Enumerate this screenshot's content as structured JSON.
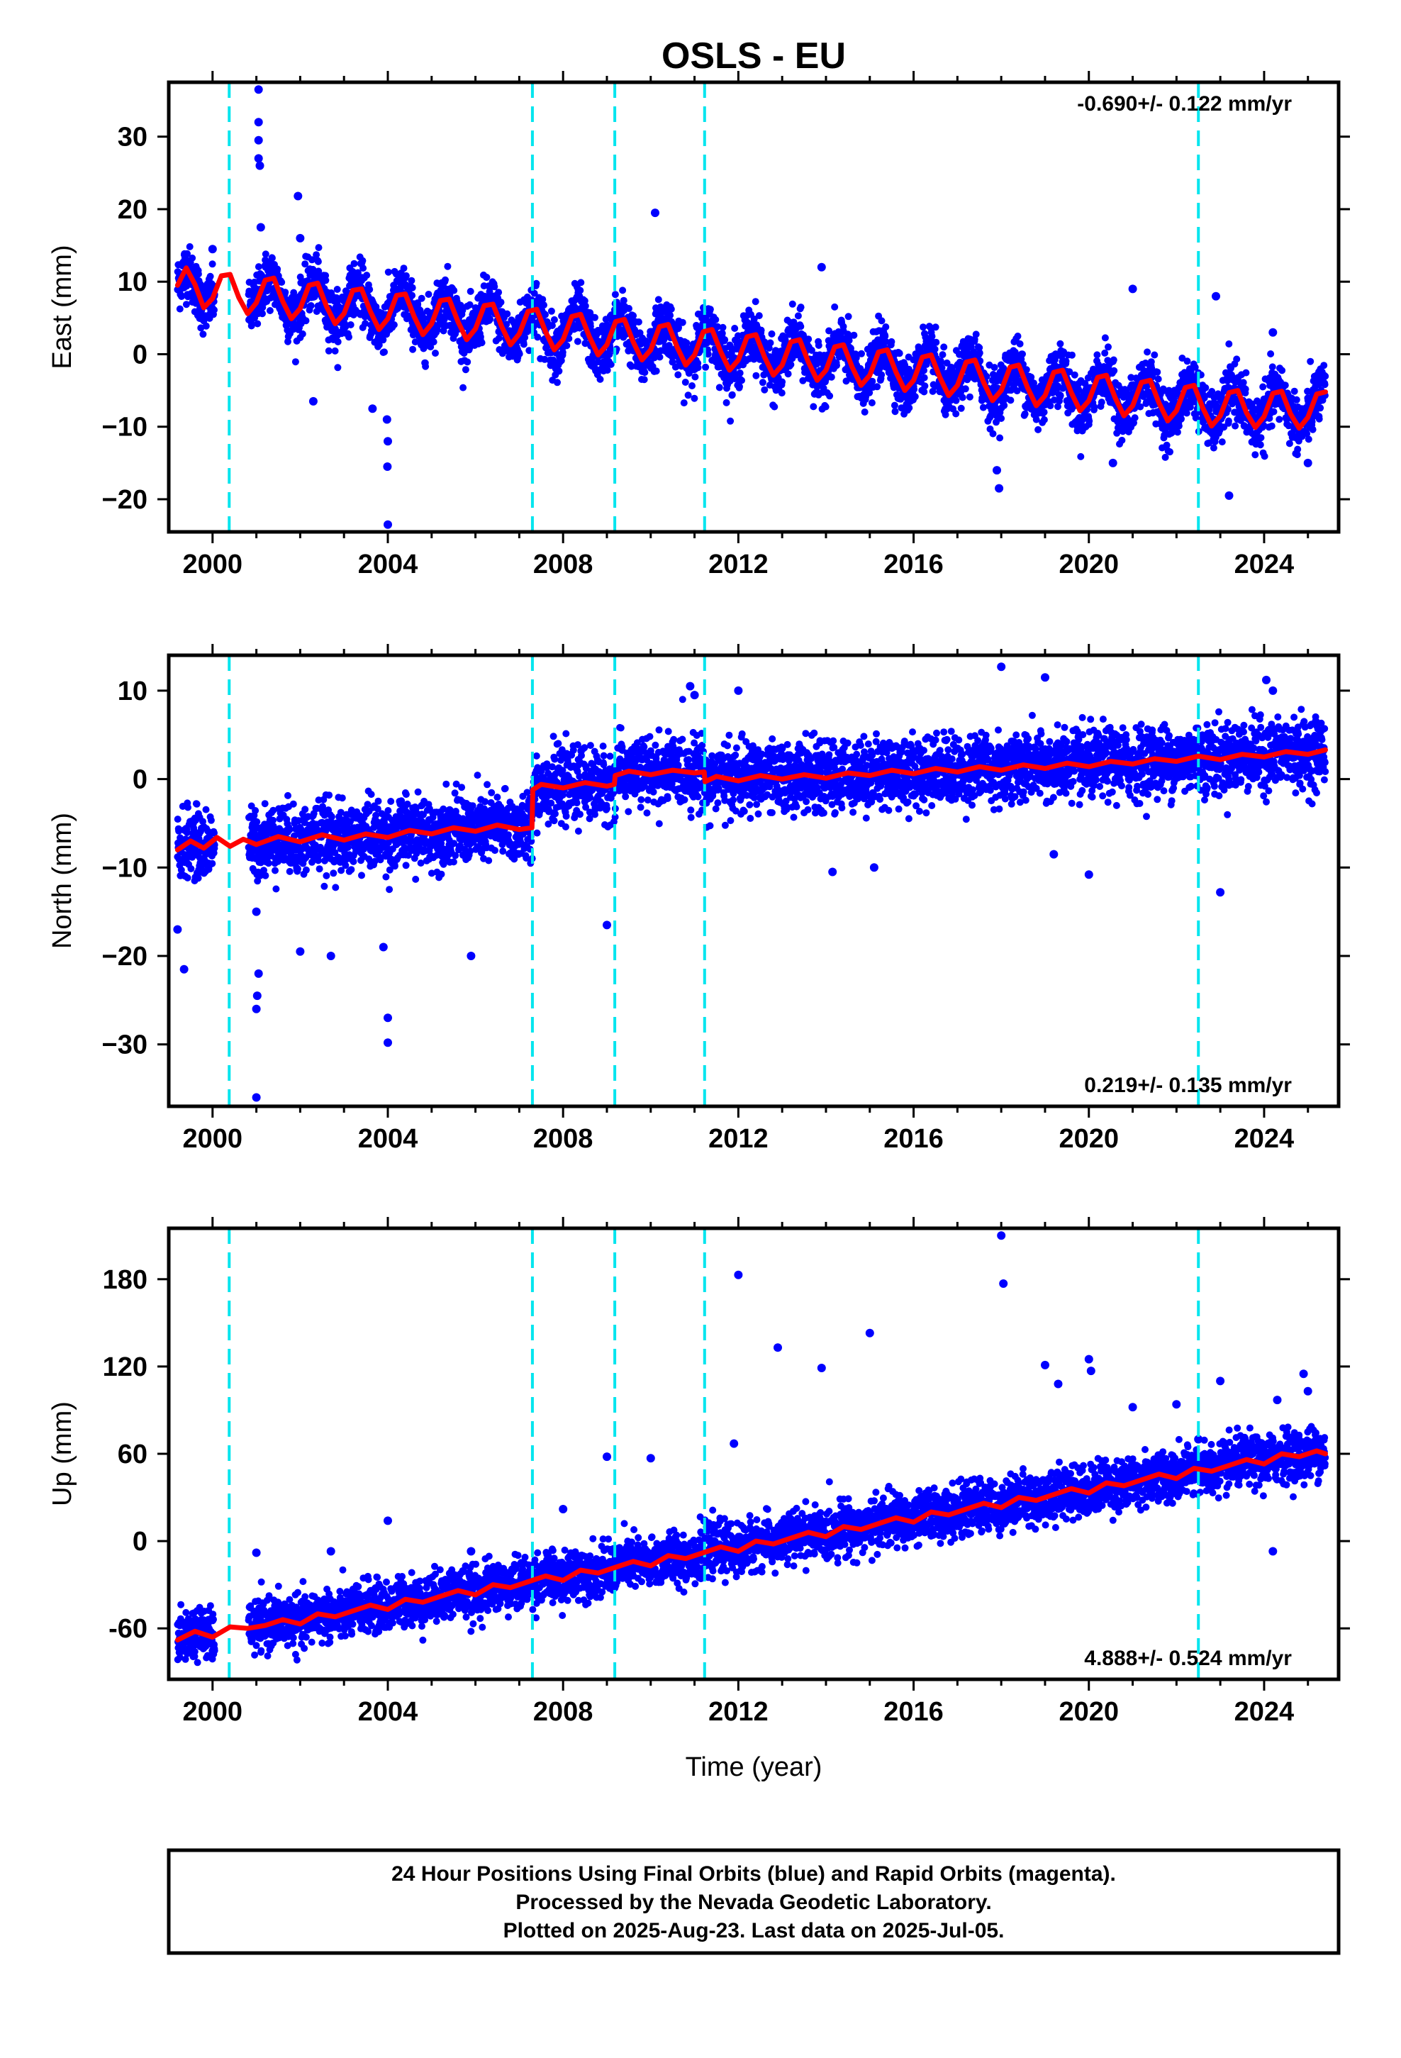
{
  "title": "OSLS - EU",
  "footer": {
    "lines": [
      "24 Hour Positions Using Final Orbits (blue) and Rapid Orbits (magenta).",
      "Processed by the Nevada Geodetic Laboratory.",
      "Plotted on 2025-Aug-23. Last data on 2025-Jul-05."
    ]
  },
  "chart_data": [
    {
      "type": "scatter",
      "panel": "east",
      "title": "OSLS - EU",
      "ylabel": "East (mm)",
      "xlabel": "",
      "rate_label": "-0.690+/- 0.122 mm/yr",
      "rate_position": "top-right",
      "xlim": [
        1999.0,
        2025.7
      ],
      "ylim": [
        -24.5,
        37.5
      ],
      "xticks": [
        2000,
        2004,
        2008,
        2012,
        2016,
        2020,
        2024
      ],
      "yticks": [
        -20,
        -10,
        0,
        10,
        20,
        30
      ],
      "ytick_labels": [
        "−20",
        "−10",
        "0",
        "10",
        "20",
        "30"
      ],
      "grid": false,
      "colors": {
        "points": "#0000ff",
        "model": "#ff0000",
        "events": "#00e5ee"
      },
      "event_lines": [
        2000.38,
        2007.3,
        2009.18,
        2011.23,
        2022.5
      ],
      "model": {
        "x": [
          1999.2,
          1999.4,
          1999.6,
          1999.8,
          2000.0,
          2000.2,
          2000.4,
          2000.6,
          2000.8,
          2001.0,
          2001.2,
          2001.4,
          2001.6,
          2001.8,
          2002.0,
          2002.2,
          2002.4,
          2002.6,
          2002.8,
          2003.0,
          2003.2,
          2003.4,
          2003.6,
          2003.8,
          2004.0,
          2004.2,
          2004.4,
          2004.6,
          2004.8,
          2005.0,
          2005.2,
          2005.4,
          2005.6,
          2005.8,
          2006.0,
          2006.2,
          2006.4,
          2006.6,
          2006.8,
          2007.0,
          2007.2,
          2007.4,
          2007.6,
          2007.8,
          2008.0,
          2008.2,
          2008.4,
          2008.6,
          2008.8,
          2009.0,
          2009.2,
          2009.4,
          2009.6,
          2009.8,
          2010.0,
          2010.2,
          2010.4,
          2010.6,
          2010.8,
          2011.0,
          2011.2,
          2011.4,
          2011.6,
          2011.8,
          2012.0,
          2012.2,
          2012.4,
          2012.6,
          2012.8,
          2013.0,
          2013.2,
          2013.4,
          2013.6,
          2013.8,
          2014.0,
          2014.2,
          2014.4,
          2014.6,
          2014.8,
          2015.0,
          2015.2,
          2015.4,
          2015.6,
          2015.8,
          2016.0,
          2016.2,
          2016.4,
          2016.6,
          2016.8,
          2017.0,
          2017.2,
          2017.4,
          2017.6,
          2017.8,
          2018.0,
          2018.2,
          2018.4,
          2018.6,
          2018.8,
          2019.0,
          2019.2,
          2019.4,
          2019.6,
          2019.8,
          2020.0,
          2020.2,
          2020.4,
          2020.6,
          2020.8,
          2021.0,
          2021.2,
          2021.4,
          2021.6,
          2021.8,
          2022.0,
          2022.2,
          2022.4,
          2022.6,
          2022.8,
          2023.0,
          2023.2,
          2023.4,
          2023.6,
          2023.8,
          2024.0,
          2024.2,
          2024.4,
          2024.6,
          2024.8,
          2025.0,
          2025.2,
          2025.4
        ],
        "y": [
          9.5,
          11.9,
          9.6,
          6.4,
          7.7,
          10.8,
          11.0,
          7.8,
          5.6,
          7.1,
          10.2,
          10.5,
          7.3,
          4.9,
          6.3,
          9.5,
          9.8,
          6.6,
          4.2,
          5.6,
          8.8,
          9.0,
          5.9,
          3.4,
          4.9,
          8.1,
          8.3,
          5.2,
          2.7,
          4.2,
          7.4,
          7.6,
          4.5,
          2.0,
          3.5,
          6.7,
          6.9,
          3.8,
          1.3,
          2.8,
          5.9,
          6.2,
          3.1,
          0.6,
          2.0,
          5.2,
          5.5,
          2.4,
          -0.1,
          1.3,
          4.5,
          4.8,
          1.7,
          -0.8,
          0.6,
          3.8,
          4.1,
          1.0,
          -1.5,
          -0.1,
          3.1,
          3.4,
          0.3,
          -2.2,
          -0.8,
          2.4,
          2.7,
          -0.4,
          -2.9,
          -1.5,
          1.7,
          2.0,
          -1.1,
          -3.6,
          -2.2,
          1.0,
          1.3,
          -1.8,
          -4.3,
          -2.9,
          0.3,
          0.6,
          -2.5,
          -5.0,
          -3.6,
          -0.4,
          -0.1,
          -3.2,
          -5.7,
          -4.3,
          -1.1,
          -0.8,
          -3.9,
          -6.4,
          -5.0,
          -1.8,
          -1.5,
          -4.6,
          -7.1,
          -5.7,
          -2.5,
          -2.2,
          -5.3,
          -7.8,
          -6.4,
          -3.2,
          -2.9,
          -6.0,
          -8.5,
          -7.1,
          -3.9,
          -3.6,
          -6.7,
          -9.2,
          -7.8,
          -4.6,
          -4.3,
          -7.4,
          -9.9,
          -8.5,
          -5.3,
          -5.0,
          -8.1,
          -10.1,
          -8.6,
          -5.4,
          -5.1,
          -8.2,
          -10.2,
          -8.7,
          -5.5,
          -5.2
        ]
      },
      "outliers": {
        "x": [
          2001.05,
          2001.05,
          2001.05,
          2001.05,
          2001.08,
          2001.1,
          2001.95,
          2003.65,
          2003.98,
          2004.0,
          2003.99,
          2004.0,
          2010.1,
          2013.9,
          2017.9,
          2017.95,
          2020.55,
          2021.0,
          2022.9,
          2023.2,
          2024.2,
          2025.0,
          2000.0,
          2002.3,
          2002.0
        ],
        "y": [
          36.5,
          32.0,
          29.5,
          27.0,
          26.0,
          17.5,
          21.8,
          -7.5,
          -9.0,
          -12.0,
          -15.5,
          -23.5,
          19.5,
          12.0,
          -16.0,
          -18.5,
          -15.0,
          9.0,
          8.0,
          -19.5,
          3.0,
          -15.0,
          14.5,
          -6.5,
          16.0
        ]
      }
    },
    {
      "type": "scatter",
      "panel": "north",
      "ylabel": "North (mm)",
      "xlabel": "",
      "rate_label": "0.219+/- 0.135 mm/yr",
      "rate_position": "bottom-right",
      "xlim": [
        1999.0,
        2025.7
      ],
      "ylim": [
        -37.0,
        14.0
      ],
      "xticks": [
        2000,
        2004,
        2008,
        2012,
        2016,
        2020,
        2024
      ],
      "yticks": [
        -30,
        -20,
        -10,
        0,
        10
      ],
      "ytick_labels": [
        "−30",
        "−20",
        "−10",
        "0",
        "10"
      ],
      "grid": false,
      "colors": {
        "points": "#0000ff",
        "model": "#ff0000",
        "events": "#00e5ee"
      },
      "event_lines": [
        2000.38,
        2007.3,
        2009.18,
        2011.23,
        2022.5
      ],
      "model": {
        "x": [
          1999.2,
          1999.5,
          1999.8,
          2000.1,
          2000.4,
          2000.7,
          2001.0,
          2001.5,
          2002.0,
          2002.5,
          2003.0,
          2003.5,
          2004.0,
          2004.5,
          2005.0,
          2005.5,
          2006.0,
          2006.5,
          2007.0,
          2007.29,
          2007.31,
          2007.5,
          2008.0,
          2008.5,
          2009.0,
          2009.17,
          2009.19,
          2009.5,
          2010.0,
          2010.5,
          2011.0,
          2011.22,
          2011.24,
          2011.5,
          2012.0,
          2012.5,
          2013.0,
          2013.5,
          2014.0,
          2014.5,
          2015.0,
          2015.5,
          2016.0,
          2016.5,
          2017.0,
          2017.5,
          2018.0,
          2018.5,
          2019.0,
          2019.5,
          2020.0,
          2020.5,
          2021.0,
          2021.5,
          2022.0,
          2022.5,
          2023.0,
          2023.5,
          2024.0,
          2024.5,
          2025.0,
          2025.4
        ],
        "y": [
          -8.0,
          -7.0,
          -7.8,
          -6.6,
          -7.6,
          -6.8,
          -7.4,
          -6.5,
          -7.1,
          -6.3,
          -6.9,
          -6.2,
          -6.6,
          -5.8,
          -6.2,
          -5.5,
          -5.9,
          -5.2,
          -5.7,
          -5.5,
          -1.2,
          -0.6,
          -1.0,
          -0.4,
          -0.8,
          -0.6,
          0.4,
          0.9,
          0.5,
          1.0,
          0.7,
          0.8,
          -0.3,
          0.3,
          -0.2,
          0.4,
          0.0,
          0.5,
          0.1,
          0.7,
          0.4,
          1.0,
          0.6,
          1.2,
          0.8,
          1.4,
          1.0,
          1.6,
          1.2,
          1.8,
          1.4,
          2.0,
          1.7,
          2.3,
          2.0,
          2.6,
          2.2,
          2.8,
          2.5,
          3.1,
          2.8,
          3.3
        ]
      },
      "outliers": {
        "x": [
          1999.2,
          1999.35,
          2001.0,
          2001.0,
          2001.02,
          2001.05,
          2001.0,
          2002.0,
          2002.7,
          2003.9,
          2004.0,
          2004.0,
          2005.9,
          2009.0,
          2010.9,
          2011.0,
          2012.0,
          2014.15,
          2015.1,
          2018.0,
          2019.0,
          2019.2,
          2020.0,
          2023.0,
          2024.05,
          2024.2
        ],
        "y": [
          -17.0,
          -21.5,
          -36.0,
          -26.0,
          -24.5,
          -22.0,
          -15.0,
          -19.5,
          -20.0,
          -19.0,
          -27.0,
          -29.8,
          -20.0,
          -16.5,
          10.5,
          9.5,
          10.0,
          -10.5,
          -10.0,
          12.7,
          11.5,
          -8.5,
          -10.8,
          -12.8,
          11.2,
          10.0
        ]
      }
    },
    {
      "type": "scatter",
      "panel": "up",
      "ylabel": "Up (mm)",
      "xlabel": "Time (year)",
      "rate_label": "4.888+/- 0.524 mm/yr",
      "rate_position": "bottom-right",
      "xlim": [
        1999.0,
        2025.7
      ],
      "ylim": [
        -95.0,
        215.0
      ],
      "xticks": [
        2000,
        2004,
        2008,
        2012,
        2016,
        2020,
        2024
      ],
      "yticks": [
        -60,
        0,
        60,
        120,
        180
      ],
      "ytick_labels": [
        "-60",
        "0",
        "60",
        "120",
        "180"
      ],
      "grid": false,
      "colors": {
        "points": "#0000ff",
        "model": "#ff0000",
        "events": "#00e5ee"
      },
      "event_lines": [
        2000.38,
        2007.3,
        2009.18,
        2011.23,
        2022.5
      ],
      "model": {
        "x": [
          1999.2,
          1999.6,
          2000.0,
          2000.4,
          2000.8,
          2001.2,
          2001.6,
          2002.0,
          2002.4,
          2002.8,
          2003.2,
          2003.6,
          2004.0,
          2004.4,
          2004.8,
          2005.2,
          2005.6,
          2006.0,
          2006.4,
          2006.8,
          2007.2,
          2007.6,
          2008.0,
          2008.4,
          2008.8,
          2009.2,
          2009.6,
          2010.0,
          2010.4,
          2010.8,
          2011.2,
          2011.6,
          2012.0,
          2012.4,
          2012.8,
          2013.2,
          2013.6,
          2014.0,
          2014.4,
          2014.8,
          2015.2,
          2015.6,
          2016.0,
          2016.4,
          2016.8,
          2017.2,
          2017.6,
          2018.0,
          2018.4,
          2018.8,
          2019.2,
          2019.6,
          2020.0,
          2020.4,
          2020.8,
          2021.2,
          2021.6,
          2022.0,
          2022.4,
          2022.8,
          2023.2,
          2023.6,
          2024.0,
          2024.4,
          2024.8,
          2025.2,
          2025.4
        ],
        "y": [
          -68,
          -62,
          -66,
          -59,
          -60,
          -58,
          -54,
          -57,
          -50,
          -52,
          -48,
          -44,
          -47,
          -40,
          -42,
          -38,
          -34,
          -37,
          -30,
          -32,
          -28,
          -24,
          -27,
          -20,
          -22,
          -18,
          -14,
          -17,
          -10,
          -12,
          -8,
          -4,
          -7,
          0,
          -2,
          2,
          6,
          3,
          10,
          8,
          12,
          16,
          13,
          20,
          18,
          22,
          26,
          23,
          30,
          28,
          32,
          36,
          33,
          40,
          38,
          42,
          46,
          43,
          50,
          48,
          52,
          56,
          53,
          60,
          58,
          62,
          60
        ]
      },
      "outliers": {
        "x": [
          2001.0,
          2002.7,
          2004.0,
          2005.9,
          2008.0,
          2009.0,
          2010.0,
          2011.9,
          2012.0,
          2012.9,
          2013.9,
          2015.0,
          2018.0,
          2018.05,
          2019.0,
          2019.3,
          2020.0,
          2020.05,
          2021.0,
          2022.0,
          2022.5,
          2023.0,
          2024.2,
          2024.3,
          2024.9,
          2025.0
        ],
        "y": [
          -8,
          -7,
          14,
          -7,
          22,
          58,
          57,
          67,
          183,
          133,
          119,
          143,
          210,
          177,
          121,
          108,
          125,
          117,
          92,
          94,
          70,
          110,
          -7,
          97,
          115,
          103
        ]
      }
    }
  ]
}
